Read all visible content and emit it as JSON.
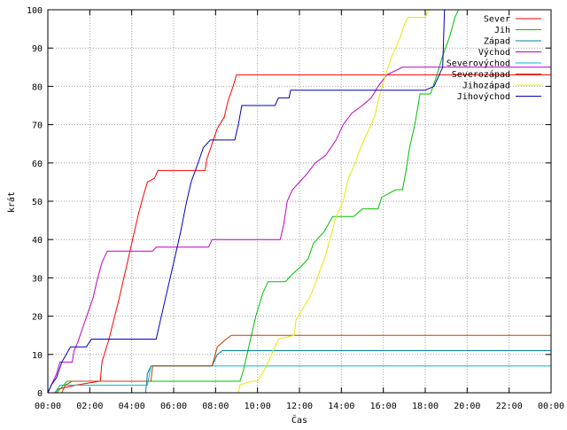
{
  "chart_data": {
    "type": "line",
    "title": "",
    "xlabel": "Čas",
    "ylabel": "krát",
    "xlim": [
      "00:00",
      "24:00"
    ],
    "ylim": [
      0,
      100
    ],
    "grid": true,
    "legend_position": "top-right",
    "x_ticks": [
      "00:00",
      "02:00",
      "04:00",
      "06:00",
      "08:00",
      "10:00",
      "12:00",
      "14:00",
      "16:00",
      "18:00",
      "20:00",
      "22:00",
      "00:00"
    ],
    "y_ticks": [
      "0",
      "10",
      "20",
      "30",
      "40",
      "50",
      "60",
      "70",
      "80",
      "90",
      "100"
    ],
    "series": [
      {
        "name": "Sever",
        "color": "#ff0000",
        "points": [
          [
            "00:00",
            0
          ],
          [
            "00:20",
            0
          ],
          [
            "00:30",
            1
          ],
          [
            "01:20",
            2
          ],
          [
            "02:30",
            3
          ],
          [
            "02:35",
            8
          ],
          [
            "02:55",
            14
          ],
          [
            "03:25",
            25
          ],
          [
            "03:45",
            33
          ],
          [
            "04:05",
            41
          ],
          [
            "04:20",
            47
          ],
          [
            "04:35",
            52
          ],
          [
            "04:45",
            55
          ],
          [
            "05:05",
            56
          ],
          [
            "05:15",
            58
          ],
          [
            "07:30",
            58
          ],
          [
            "07:35",
            61
          ],
          [
            "07:50",
            65
          ],
          [
            "08:05",
            69
          ],
          [
            "08:25",
            72
          ],
          [
            "08:35",
            76
          ],
          [
            "08:50",
            80
          ],
          [
            "09:00",
            83
          ],
          [
            "24:00",
            83
          ]
        ]
      },
      {
        "name": "Jih",
        "color": "#00c000",
        "points": [
          [
            "00:00",
            0
          ],
          [
            "00:25",
            0
          ],
          [
            "00:35",
            1
          ],
          [
            "00:55",
            3
          ],
          [
            "09:10",
            3
          ],
          [
            "09:20",
            6
          ],
          [
            "09:35",
            12
          ],
          [
            "09:55",
            20
          ],
          [
            "10:15",
            26
          ],
          [
            "10:30",
            29
          ],
          [
            "11:20",
            29
          ],
          [
            "11:40",
            31
          ],
          [
            "12:05",
            33
          ],
          [
            "12:25",
            35
          ],
          [
            "12:40",
            39
          ],
          [
            "13:10",
            42
          ],
          [
            "13:35",
            46
          ],
          [
            "14:35",
            46
          ],
          [
            "15:00",
            48
          ],
          [
            "15:45",
            48
          ],
          [
            "15:55",
            51
          ],
          [
            "16:35",
            53
          ],
          [
            "16:55",
            53
          ],
          [
            "17:05",
            58
          ],
          [
            "17:15",
            64
          ],
          [
            "17:30",
            70
          ],
          [
            "17:45",
            78
          ],
          [
            "18:15",
            78
          ],
          [
            "18:30",
            82
          ],
          [
            "18:50",
            88
          ],
          [
            "19:10",
            93
          ],
          [
            "19:25",
            98
          ],
          [
            "19:35",
            100
          ]
        ]
      },
      {
        "name": "Západ",
        "color": "#0080a0",
        "points": [
          [
            "00:00",
            0
          ],
          [
            "04:40",
            0
          ],
          [
            "04:45",
            5
          ],
          [
            "04:55",
            7
          ],
          [
            "07:50",
            7
          ],
          [
            "08:05",
            10
          ],
          [
            "08:20",
            11
          ],
          [
            "24:00",
            11
          ]
        ]
      },
      {
        "name": "Východ",
        "color": "#c000c0",
        "points": [
          [
            "00:00",
            0
          ],
          [
            "00:10",
            2
          ],
          [
            "00:25",
            5
          ],
          [
            "00:35",
            8
          ],
          [
            "01:10",
            8
          ],
          [
            "01:15",
            11
          ],
          [
            "01:25",
            13
          ],
          [
            "01:40",
            17
          ],
          [
            "01:55",
            21
          ],
          [
            "02:10",
            25
          ],
          [
            "02:20",
            29
          ],
          [
            "02:35",
            34
          ],
          [
            "02:50",
            37
          ],
          [
            "05:00",
            37
          ],
          [
            "05:10",
            38
          ],
          [
            "07:40",
            38
          ],
          [
            "07:50",
            40
          ],
          [
            "11:05",
            40
          ],
          [
            "11:15",
            44
          ],
          [
            "11:25",
            50
          ],
          [
            "11:40",
            53
          ],
          [
            "12:00",
            55
          ],
          [
            "12:20",
            57
          ],
          [
            "12:45",
            60
          ],
          [
            "13:15",
            62
          ],
          [
            "13:45",
            66
          ],
          [
            "14:05",
            70
          ],
          [
            "14:30",
            73
          ],
          [
            "15:00",
            75
          ],
          [
            "15:25",
            77
          ],
          [
            "15:45",
            80
          ],
          [
            "16:10",
            83
          ],
          [
            "16:55",
            85
          ],
          [
            "24:00",
            85
          ]
        ]
      },
      {
        "name": "Severovýchod",
        "color": "#00c0c0",
        "points": [
          [
            "00:00",
            0
          ],
          [
            "00:20",
            0
          ],
          [
            "00:35",
            2
          ],
          [
            "04:45",
            2
          ],
          [
            "04:55",
            7
          ],
          [
            "24:00",
            7
          ]
        ]
      },
      {
        "name": "Severozápad",
        "color": "#c04000",
        "points": [
          [
            "00:00",
            0
          ],
          [
            "00:40",
            0
          ],
          [
            "00:50",
            2
          ],
          [
            "01:10",
            3
          ],
          [
            "04:55",
            3
          ],
          [
            "05:00",
            7
          ],
          [
            "07:50",
            7
          ],
          [
            "08:05",
            12
          ],
          [
            "08:30",
            14
          ],
          [
            "08:45",
            15
          ],
          [
            "24:00",
            15
          ]
        ]
      },
      {
        "name": "Jihozápad",
        "color": "#e8e800",
        "points": [
          [
            "00:00",
            0
          ],
          [
            "09:05",
            0
          ],
          [
            "09:10",
            2
          ],
          [
            "09:40",
            3
          ],
          [
            "10:00",
            3
          ],
          [
            "10:20",
            6
          ],
          [
            "10:45",
            11
          ],
          [
            "11:00",
            14
          ],
          [
            "11:45",
            15
          ],
          [
            "11:50",
            19
          ],
          [
            "12:10",
            22
          ],
          [
            "12:35",
            26
          ],
          [
            "12:55",
            31
          ],
          [
            "13:15",
            36
          ],
          [
            "13:30",
            41
          ],
          [
            "13:45",
            46
          ],
          [
            "14:05",
            50
          ],
          [
            "14:20",
            56
          ],
          [
            "14:40",
            60
          ],
          [
            "14:55",
            64
          ],
          [
            "15:15",
            68
          ],
          [
            "15:35",
            72
          ],
          [
            "15:50",
            78
          ],
          [
            "16:10",
            84
          ],
          [
            "16:25",
            88
          ],
          [
            "16:45",
            92
          ],
          [
            "17:00",
            96
          ],
          [
            "17:10",
            98
          ],
          [
            "18:00",
            98
          ],
          [
            "18:10",
            100
          ]
        ]
      },
      {
        "name": "Jihovýchod",
        "color": "#0000c0",
        "points": [
          [
            "00:00",
            0
          ],
          [
            "00:10",
            2
          ],
          [
            "00:25",
            4
          ],
          [
            "00:40",
            8
          ],
          [
            "01:05",
            12
          ],
          [
            "01:50",
            12
          ],
          [
            "02:05",
            14
          ],
          [
            "05:10",
            14
          ],
          [
            "05:20",
            18
          ],
          [
            "05:35",
            24
          ],
          [
            "05:50",
            30
          ],
          [
            "06:05",
            36
          ],
          [
            "06:20",
            42
          ],
          [
            "06:35",
            49
          ],
          [
            "06:50",
            55
          ],
          [
            "07:10",
            60
          ],
          [
            "07:25",
            64
          ],
          [
            "07:45",
            66
          ],
          [
            "08:55",
            66
          ],
          [
            "09:05",
            70
          ],
          [
            "09:15",
            75
          ],
          [
            "10:50",
            75
          ],
          [
            "11:00",
            77
          ],
          [
            "11:30",
            77
          ],
          [
            "11:35",
            79
          ],
          [
            "18:00",
            79
          ],
          [
            "18:25",
            80
          ],
          [
            "18:50",
            85
          ],
          [
            "18:55",
            100
          ]
        ]
      }
    ]
  }
}
